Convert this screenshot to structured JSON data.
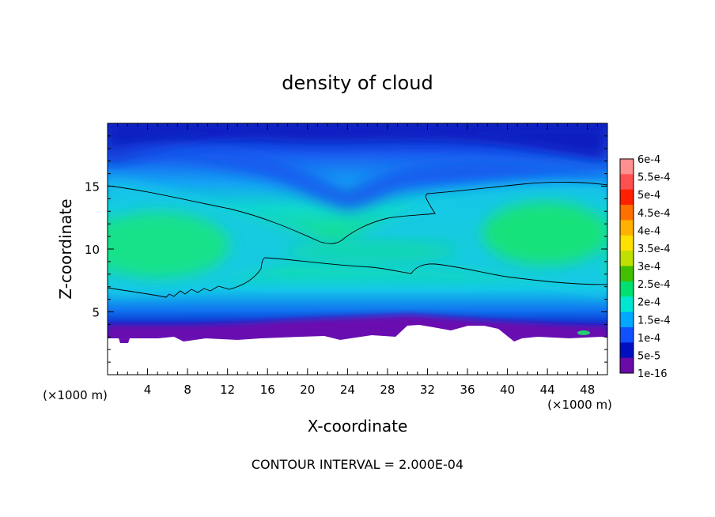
{
  "chart_data": {
    "type": "heatmap",
    "title": "density of cloud",
    "xlabel": "X-coordinate",
    "ylabel": "Z-coordinate",
    "x_unit": "(×1000 m)",
    "y_unit": "(×1000 m)",
    "xlim": [
      0,
      50
    ],
    "ylim": [
      0,
      20
    ],
    "x_ticks": [
      4,
      8,
      12,
      16,
      20,
      24,
      28,
      32,
      36,
      40,
      44,
      48
    ],
    "y_ticks": [
      5,
      10,
      15
    ],
    "footnote": "CONTOUR INTERVAL = 2.000E-04",
    "colorbar": {
      "labels": [
        "6e-4",
        "5.5e-4",
        "5e-4",
        "4.5e-4",
        "4e-4",
        "3.5e-4",
        "3e-4",
        "2.5e-4",
        "2e-4",
        "1.5e-4",
        "1e-4",
        "5e-5",
        "1e-16"
      ],
      "colors": [
        "#ff9090",
        "#ff5050",
        "#ff2000",
        "#ff7000",
        "#ffb000",
        "#ffe000",
        "#c0e000",
        "#40c000",
        "#00e070",
        "#00e6d0",
        "#00a8ff",
        "#1050ff",
        "#0010c0",
        "#6a0aa8"
      ]
    },
    "contour_level": "2e-4",
    "grid": false,
    "legend_placement": "right"
  }
}
